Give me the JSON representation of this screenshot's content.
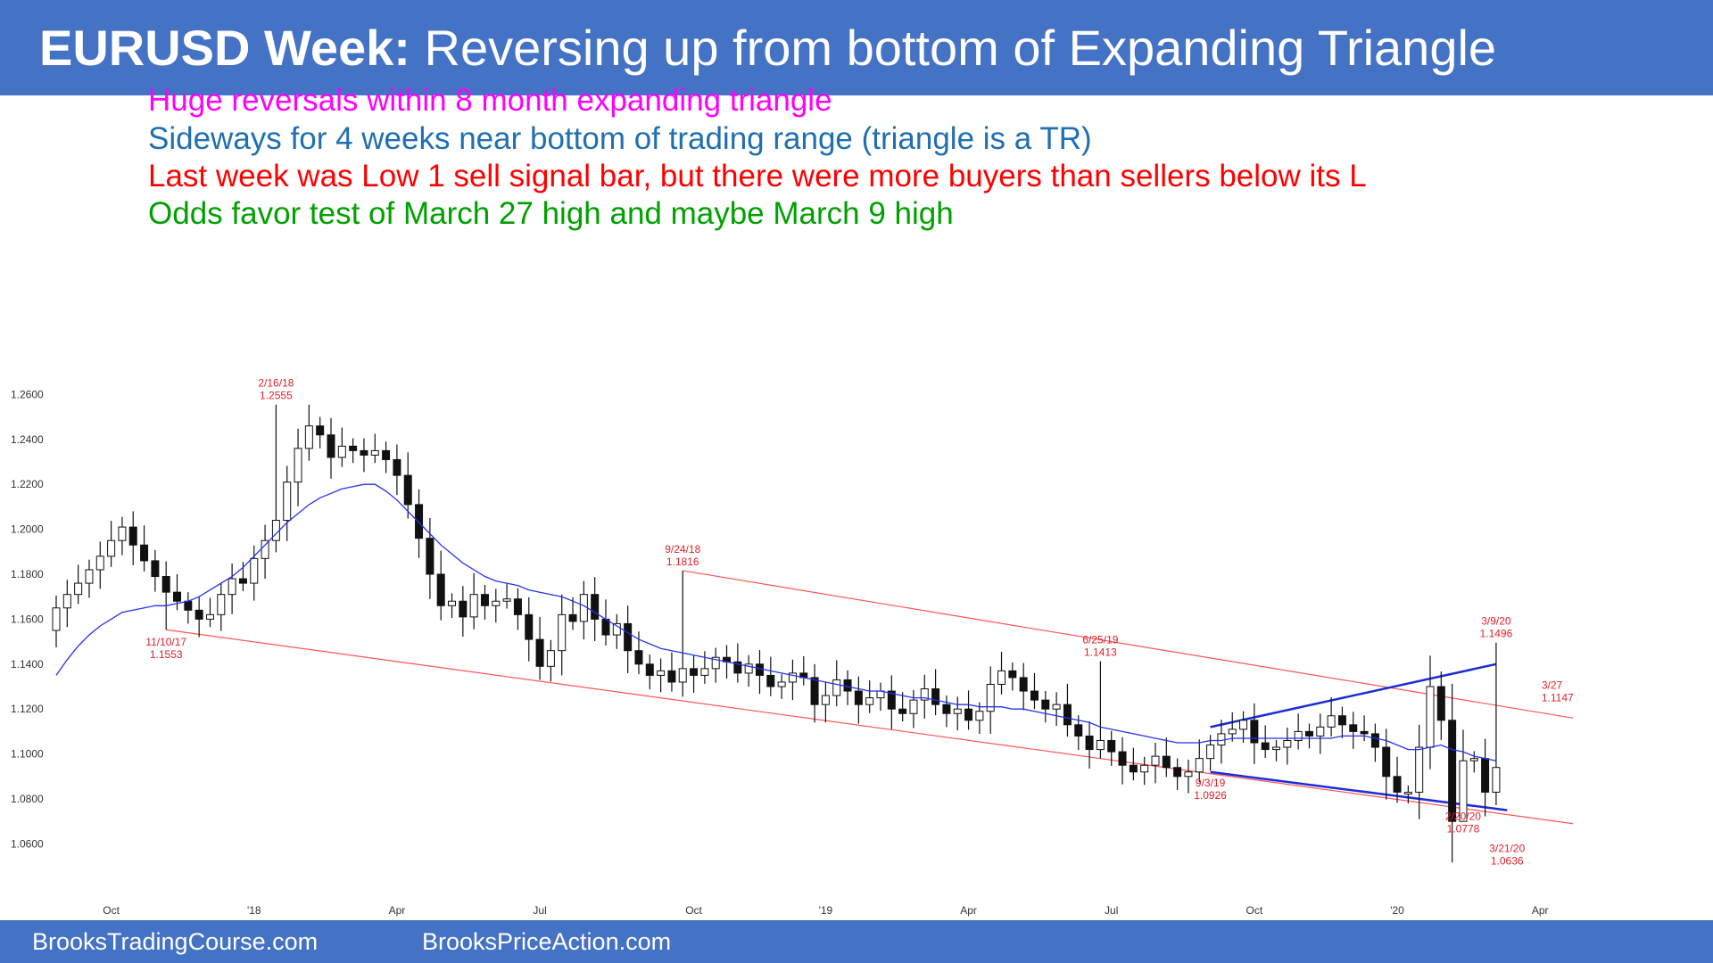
{
  "header": {
    "title_bold": "EURUSD Week:",
    "title_rest": " Reversing up from bottom of Expanding Triangle"
  },
  "notes": [
    {
      "text": "Huge reversals within 8 month expanding triangle",
      "color": "#FF00FF"
    },
    {
      "text": "Sideways for 4 weeks near bottom of trading range (triangle is a TR)",
      "color": "#1F6FB2"
    },
    {
      "text": "Last week was Low 1 sell signal bar, but there were more buyers than sellers below its L",
      "color": "#FF0000"
    },
    {
      "text": "Odds favor test of March 27 high and maybe March 9 high",
      "color": "#00A000"
    }
  ],
  "footer": {
    "left": "BrooksTradingCourse.com",
    "right": "BrooksPriceAction.com"
  },
  "chart_data": {
    "type": "candlestick",
    "ylim": [
      1.048,
      1.275
    ],
    "yticks": [
      "1.2600",
      "1.2400",
      "1.2200",
      "1.2000",
      "1.1800",
      "1.1600",
      "1.1400",
      "1.1200",
      "1.1000",
      "1.0800",
      "1.0600"
    ],
    "xticks": [
      {
        "label": "Oct",
        "week": 5
      },
      {
        "label": "'18",
        "week": 18
      },
      {
        "label": "Apr",
        "week": 31
      },
      {
        "label": "Jul",
        "week": 44
      },
      {
        "label": "Oct",
        "week": 58
      },
      {
        "label": "'19",
        "week": 70
      },
      {
        "label": "Apr",
        "week": 83
      },
      {
        "label": "Jul",
        "week": 96
      },
      {
        "label": "Oct",
        "week": 109
      },
      {
        "label": "'20",
        "week": 122
      },
      {
        "label": "Apr",
        "week": 135
      }
    ],
    "close_series": [
      1.165,
      1.171,
      1.176,
      1.182,
      1.188,
      1.195,
      1.201,
      1.193,
      1.186,
      1.179,
      1.172,
      1.168,
      1.164,
      1.16,
      1.162,
      1.171,
      1.178,
      1.176,
      1.187,
      1.195,
      1.204,
      1.221,
      1.236,
      1.246,
      1.242,
      1.232,
      1.237,
      1.235,
      1.233,
      1.235,
      1.231,
      1.224,
      1.211,
      1.196,
      1.18,
      1.166,
      1.168,
      1.161,
      1.171,
      1.166,
      1.168,
      1.169,
      1.162,
      1.151,
      1.139,
      1.146,
      1.162,
      1.159,
      1.171,
      1.16,
      1.153,
      1.158,
      1.146,
      1.14,
      1.135,
      1.137,
      1.132,
      1.138,
      1.135,
      1.138,
      1.143,
      1.141,
      1.136,
      1.14,
      1.135,
      1.13,
      1.132,
      1.136,
      1.134,
      1.122,
      1.126,
      1.133,
      1.128,
      1.122,
      1.125,
      1.128,
      1.12,
      1.118,
      1.124,
      1.129,
      1.122,
      1.118,
      1.12,
      1.115,
      1.119,
      1.131,
      1.137,
      1.134,
      1.128,
      1.124,
      1.12,
      1.122,
      1.113,
      1.108,
      1.102,
      1.106,
      1.101,
      1.095,
      1.092,
      1.095,
      1.099,
      1.094,
      1.09,
      1.092,
      1.098,
      1.104,
      1.109,
      1.111,
      1.115,
      1.105,
      1.102,
      1.103,
      1.106,
      1.11,
      1.108,
      1.112,
      1.117,
      1.113,
      1.11,
      1.109,
      1.103,
      1.09,
      1.083,
      1.083,
      1.103,
      1.13,
      1.115,
      1.07,
      1.097,
      1.098,
      1.083,
      1.094
    ],
    "ma_series": [
      1.135,
      1.142,
      1.148,
      1.153,
      1.157,
      1.16,
      1.163,
      1.164,
      1.165,
      1.166,
      1.166,
      1.167,
      1.168,
      1.17,
      1.173,
      1.176,
      1.179,
      1.183,
      1.188,
      1.193,
      1.198,
      1.203,
      1.207,
      1.211,
      1.214,
      1.216,
      1.218,
      1.219,
      1.22,
      1.22,
      1.217,
      1.213,
      1.208,
      1.203,
      1.198,
      1.193,
      1.189,
      1.185,
      1.182,
      1.179,
      1.177,
      1.176,
      1.175,
      1.173,
      1.172,
      1.171,
      1.17,
      1.168,
      1.166,
      1.163,
      1.16,
      1.157,
      1.154,
      1.151,
      1.149,
      1.147,
      1.146,
      1.145,
      1.144,
      1.143,
      1.142,
      1.141,
      1.14,
      1.139,
      1.138,
      1.137,
      1.136,
      1.135,
      1.134,
      1.133,
      1.132,
      1.131,
      1.13,
      1.129,
      1.128,
      1.128,
      1.127,
      1.126,
      1.125,
      1.125,
      1.124,
      1.123,
      1.122,
      1.122,
      1.121,
      1.121,
      1.121,
      1.12,
      1.12,
      1.119,
      1.118,
      1.117,
      1.116,
      1.115,
      1.114,
      1.112,
      1.111,
      1.11,
      1.109,
      1.108,
      1.107,
      1.106,
      1.105,
      1.105,
      1.105,
      1.106,
      1.106,
      1.107,
      1.107,
      1.107,
      1.107,
      1.107,
      1.107,
      1.107,
      1.107,
      1.107,
      1.107,
      1.108,
      1.108,
      1.108,
      1.107,
      1.106,
      1.104,
      1.102,
      1.102,
      1.103,
      1.104,
      1.102,
      1.101,
      1.099,
      1.098,
      1.097
    ],
    "annotations": [
      {
        "date": "2/16/18",
        "price": "1.2555",
        "week": 20,
        "value": 1.2555,
        "side": "above"
      },
      {
        "date": "11/10/17",
        "price": "1.1553",
        "week": 10,
        "value": 1.1553,
        "side": "below"
      },
      {
        "date": "9/24/18",
        "price": "1.1816",
        "week": 57,
        "value": 1.1816,
        "side": "above"
      },
      {
        "date": "6/25/19",
        "price": "1.1413",
        "week": 95,
        "value": 1.1413,
        "side": "above"
      },
      {
        "date": "9/3/19",
        "price": "1.0926",
        "week": 105,
        "value": 1.0926,
        "side": "below"
      },
      {
        "date": "2/20/20",
        "price": "1.0778",
        "week": 128,
        "value": 1.0778,
        "side": "below"
      },
      {
        "date": "3/9/20",
        "price": "1.1496",
        "week": 131,
        "value": 1.1496,
        "side": "above"
      },
      {
        "date": "3/27",
        "price": "1.1147",
        "week": 134,
        "value": 1.1147,
        "side": "right"
      },
      {
        "date": "3/21/20",
        "price": "1.0636",
        "week": 132,
        "value": 1.0636,
        "side": "below"
      }
    ],
    "trendlines": [
      {
        "name": "channel-top",
        "color": "#ff5555",
        "from": {
          "week": 57,
          "value": 1.1816
        },
        "to": {
          "week": 138,
          "value": 1.116
        }
      },
      {
        "name": "channel-bottom",
        "color": "#ff5555",
        "from": {
          "week": 10,
          "value": 1.1553
        },
        "to": {
          "week": 138,
          "value": 1.069
        }
      },
      {
        "name": "triangle-top",
        "color": "#1c2bd6",
        "from": {
          "week": 105,
          "value": 1.112
        },
        "to": {
          "week": 131,
          "value": 1.14
        }
      },
      {
        "name": "triangle-bottom",
        "color": "#1c2bd6",
        "from": {
          "week": 105,
          "value": 1.092
        },
        "to": {
          "week": 132,
          "value": 1.075
        }
      }
    ],
    "colors": {
      "bar": "#111111",
      "ma": "#2233ee"
    },
    "grid": false
  }
}
